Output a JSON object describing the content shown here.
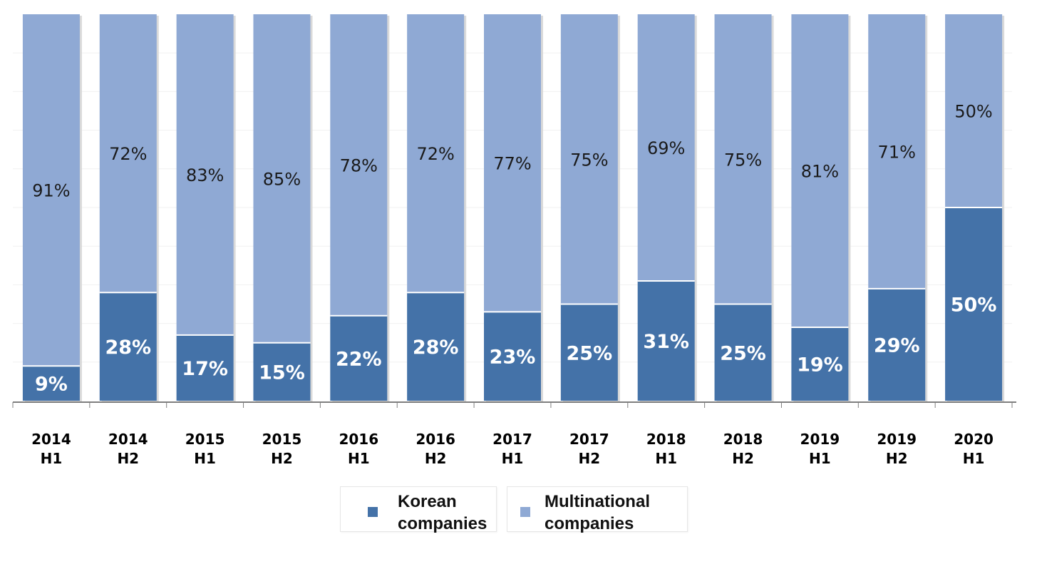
{
  "chart_data": {
    "type": "bar",
    "stacked": true,
    "normalized": true,
    "categories": [
      "2014 H1",
      "2014 H2",
      "2015 H1",
      "2015 H2",
      "2016 H1",
      "2016 H2",
      "2017 H1",
      "2017 H2",
      "2018 H1",
      "2018 H2",
      "2019 H1",
      "2019 H2",
      "2020 H1"
    ],
    "category_lines": [
      [
        "2014",
        "H1"
      ],
      [
        "2014",
        "H2"
      ],
      [
        "2015",
        "H1"
      ],
      [
        "2015",
        "H2"
      ],
      [
        "2016",
        "H1"
      ],
      [
        "2016",
        "H2"
      ],
      [
        "2017",
        "H1"
      ],
      [
        "2017",
        "H2"
      ],
      [
        "2018",
        "H1"
      ],
      [
        "2018",
        "H2"
      ],
      [
        "2019",
        "H1"
      ],
      [
        "2019",
        "H2"
      ],
      [
        "2020",
        "H1"
      ]
    ],
    "series": [
      {
        "name": "Korean companies",
        "color": "#4472a8",
        "values": [
          9,
          28,
          17,
          15,
          22,
          28,
          23,
          25,
          31,
          25,
          19,
          29,
          50
        ],
        "labels": [
          "9%",
          "28%",
          "17%",
          "15%",
          "22%",
          "28%",
          "23%",
          "25%",
          "31%",
          "25%",
          "19%",
          "29%",
          "50%"
        ]
      },
      {
        "name": "Multinational companies",
        "color": "#8fa9d4",
        "values": [
          91,
          72,
          83,
          85,
          78,
          72,
          77,
          75,
          69,
          75,
          81,
          71,
          50
        ],
        "labels": [
          "91%",
          "72%",
          "83%",
          "85%",
          "78%",
          "72%",
          "77%",
          "75%",
          "69%",
          "75%",
          "81%",
          "71%",
          "50%"
        ]
      }
    ],
    "ylim": [
      0,
      100
    ],
    "grid": true,
    "legend_position": "bottom"
  },
  "legend": {
    "korean_label": "Korean\ncompanies",
    "multinational_label": "Multinational\ncompanies"
  }
}
